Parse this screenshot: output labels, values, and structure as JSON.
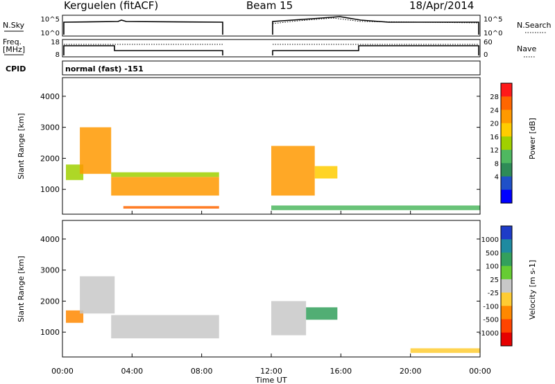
{
  "header": {
    "radar": "Kerguelen (fitACF)",
    "beam": "Beam 15",
    "date": "18/Apr/2014"
  },
  "nsky_panel": {
    "left_label": "N.Sky",
    "left_ticks": [
      "10^5",
      "10^0"
    ],
    "right_ticks": [
      "10^5",
      "10^0"
    ],
    "right_label": "N.Search"
  },
  "freq_panel": {
    "left_label_1": "Freq.",
    "left_label_2": "[MHz]",
    "left_ticks": [
      "18",
      "8"
    ],
    "right_ticks": [
      "60",
      "0"
    ],
    "right_label": "Nave",
    "cpid_label": "CPID",
    "cpid_value": "normal (fast) -151"
  },
  "chart_data": [
    {
      "type": "heatmap",
      "name": "power",
      "ylabel": "Slant Range [km]",
      "ylim": [
        200,
        4600
      ],
      "y_ticks": [
        "1000",
        "2000",
        "3000",
        "4000"
      ],
      "colorbar": {
        "label": "Power [dB]",
        "ticks": [
          "28",
          "24",
          "20",
          "16",
          "12",
          "8",
          "4"
        ],
        "colors": [
          "#ff1a1a",
          "#ff6600",
          "#ff9900",
          "#ffcc00",
          "#a0d000",
          "#4fb860",
          "#2e8b57",
          "#1f50c8",
          "#0000ff"
        ]
      },
      "data_gap_hours": [
        9,
        12
      ],
      "regions": [
        {
          "t0": 0.2,
          "t1": 1.2,
          "r0": 1300,
          "r1": 1800,
          "level": 12
        },
        {
          "t0": 1.0,
          "t1": 2.8,
          "r0": 1500,
          "r1": 3000,
          "level": 22
        },
        {
          "t0": 2.8,
          "t1": 9.0,
          "r0": 800,
          "r1": 1400,
          "level": 22
        },
        {
          "t0": 2.8,
          "t1": 9.0,
          "r0": 1400,
          "r1": 1550,
          "level": 12
        },
        {
          "t0": 3.5,
          "t1": 9.0,
          "r0": 380,
          "r1": 460,
          "level": 26
        },
        {
          "t0": 12.0,
          "t1": 14.5,
          "r0": 800,
          "r1": 2400,
          "level": 21
        },
        {
          "t0": 14.5,
          "t1": 15.8,
          "r0": 1350,
          "r1": 1750,
          "level": 17
        },
        {
          "t0": 12.0,
          "t1": 24.0,
          "r0": 330,
          "r1": 480,
          "level": 8
        }
      ]
    },
    {
      "type": "heatmap",
      "name": "velocity",
      "ylabel": "Slant Range [km]",
      "ylim": [
        200,
        4600
      ],
      "y_ticks": [
        "1000",
        "2000",
        "3000",
        "4000"
      ],
      "colorbar": {
        "label": "Velocity [m s-1]",
        "ticks": [
          "1000",
          "500",
          "100",
          "25",
          "-25",
          "-100",
          "-500",
          "-1000"
        ],
        "colors": [
          "#1e3cc8",
          "#1f8aa0",
          "#33a05c",
          "#66cc33",
          "#c8c8c8",
          "#ffcc33",
          "#ff8800",
          "#ff4400",
          "#e60000"
        ]
      },
      "data_gap_hours": [
        9,
        12
      ],
      "regions": [
        {
          "t0": 0.2,
          "t1": 1.2,
          "r0": 1300,
          "r1": 1700,
          "level": -300
        },
        {
          "t0": 1.0,
          "t1": 3.0,
          "r0": 1600,
          "r1": 2800,
          "level": 0
        },
        {
          "t0": 2.8,
          "t1": 9.0,
          "r0": 800,
          "r1": 1550,
          "level": 0
        },
        {
          "t0": 12.0,
          "t1": 14.0,
          "r0": 900,
          "r1": 2000,
          "level": 0
        },
        {
          "t0": 14.0,
          "t1": 15.8,
          "r0": 1400,
          "r1": 1800,
          "level": 150
        },
        {
          "t0": 20.0,
          "t1": 24.0,
          "r0": 330,
          "r1": 480,
          "level": -80
        }
      ]
    }
  ],
  "x_axis": {
    "label": "Time UT",
    "ticks": [
      "00:00",
      "04:00",
      "08:00",
      "12:00",
      "16:00",
      "20:00",
      "00:00"
    ]
  }
}
